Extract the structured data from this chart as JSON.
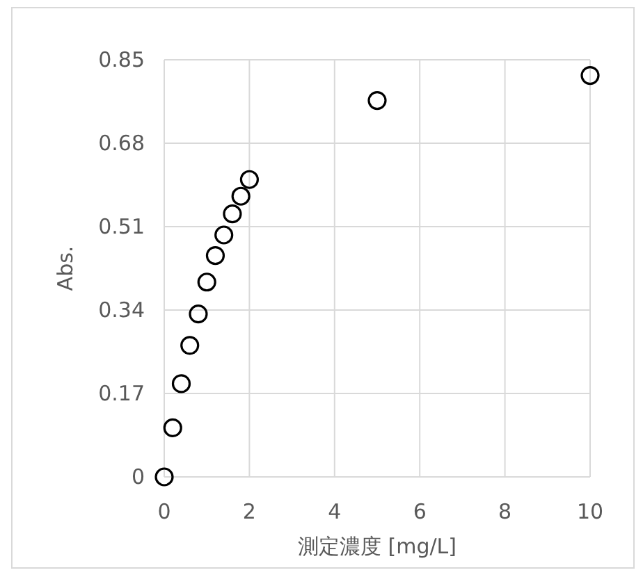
{
  "chart_data": {
    "type": "scatter",
    "xlabel": "測定濃度 [mg/L]",
    "ylabel": "Abs.",
    "x": [
      0,
      0.2,
      0.4,
      0.6,
      0.8,
      1.0,
      1.2,
      1.4,
      1.6,
      1.8,
      2.0,
      5,
      10
    ],
    "series": [
      {
        "color": "#000000",
        "values": [
          0,
          0.1,
          0.19,
          0.268,
          0.332,
          0.397,
          0.451,
          0.493,
          0.536,
          0.572,
          0.606,
          0.767,
          0.818
        ]
      }
    ],
    "xlim": [
      0,
      10
    ],
    "ylim": [
      0,
      0.85
    ],
    "xticks": [
      0,
      2,
      4,
      6,
      8,
      10
    ],
    "yticks": [
      0,
      0.17,
      0.34,
      0.51,
      0.68,
      0.85
    ],
    "grid": true,
    "marker": "circle"
  }
}
